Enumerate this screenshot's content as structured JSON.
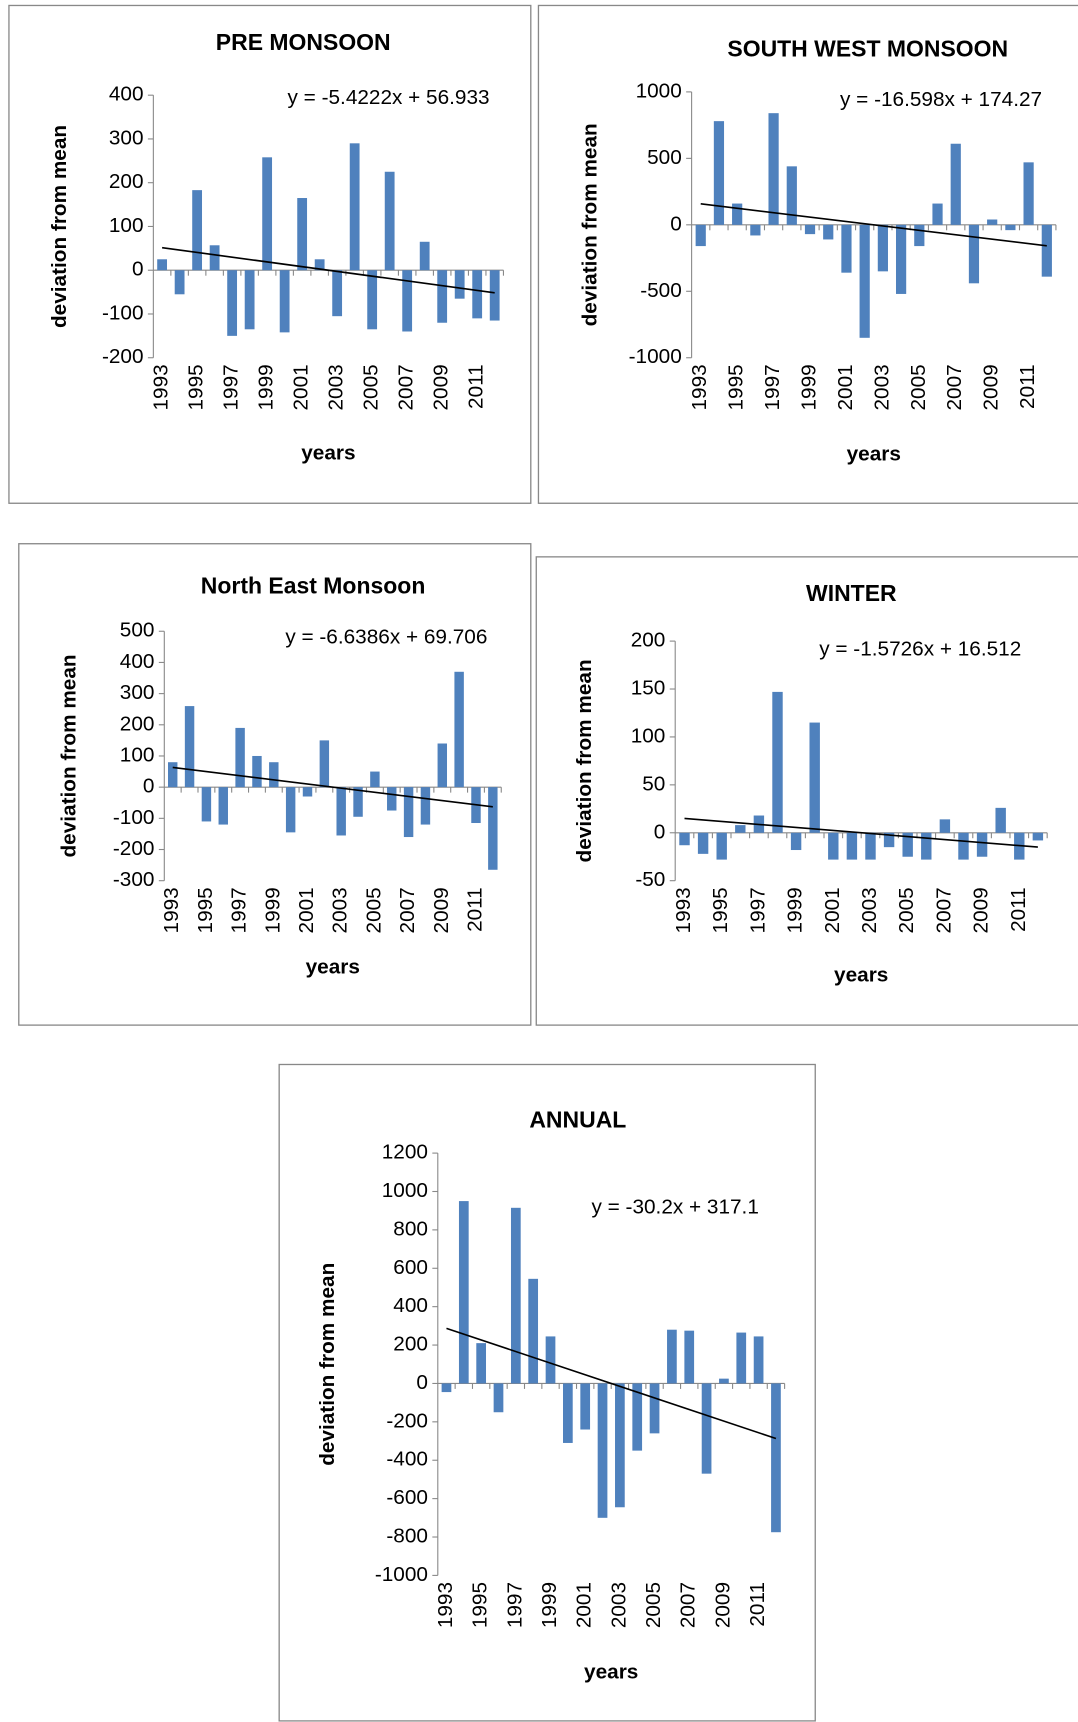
{
  "chart_data": [
    {
      "type": "bar",
      "title": "PRE MONSOON",
      "y_label": "deviation from mean",
      "x_label": "years",
      "categories": [
        "1993",
        null,
        "1995",
        null,
        "1997",
        null,
        "1999",
        null,
        "2001",
        null,
        "2003",
        null,
        "2005",
        null,
        "2007",
        null,
        "2009",
        null,
        "2011",
        null
      ],
      "values": [
        25,
        -55,
        183,
        57,
        -150,
        -135,
        258,
        -142,
        165,
        25,
        -105,
        290,
        -135,
        225,
        -140,
        65,
        -120,
        -65,
        -110,
        -115
      ],
      "color": "#4f81bd",
      "ylim": [
        -200,
        400
      ],
      "yticks": [
        -200,
        -100,
        0,
        100,
        200,
        300,
        400
      ],
      "trendline": {
        "slope": -5.4222,
        "intercept": 56.933,
        "label": "y = -5.4222x + 56.933"
      }
    },
    {
      "type": "bar",
      "title": "SOUTH WEST MONSOON",
      "y_label": "deviation from mean",
      "x_label": "years",
      "categories": [
        "1993",
        null,
        "1995",
        null,
        "1997",
        null,
        "1999",
        null,
        "2001",
        null,
        "2003",
        null,
        "2005",
        null,
        "2007",
        null,
        "2009",
        null,
        "2011",
        null
      ],
      "values": [
        -160,
        780,
        160,
        -80,
        840,
        440,
        -70,
        -110,
        -360,
        -850,
        -350,
        -520,
        -160,
        160,
        610,
        -440,
        40,
        -40,
        470,
        -390
      ],
      "color": "#4f81bd",
      "ylim": [
        -1000,
        1000
      ],
      "yticks": [
        -1000,
        -500,
        0,
        500,
        1000
      ],
      "trendline": {
        "slope": -16.598,
        "intercept": 174.27,
        "label": "y = -16.598x + 174.27"
      }
    },
    {
      "type": "bar",
      "title": "North East Monsoon",
      "y_label": "deviation from mean",
      "x_label": "years",
      "categories": [
        "1993",
        null,
        "1995",
        null,
        "1997",
        null,
        "1999",
        null,
        "2001",
        null,
        "2003",
        null,
        "2005",
        null,
        "2007",
        null,
        "2009",
        null,
        "2011",
        null
      ],
      "values": [
        80,
        260,
        -110,
        -120,
        190,
        100,
        80,
        -145,
        -30,
        150,
        -155,
        -95,
        50,
        -75,
        -160,
        -120,
        140,
        370,
        -115,
        -265
      ],
      "color": "#4f81bd",
      "ylim": [
        -300,
        500
      ],
      "yticks": [
        -300,
        -200,
        -100,
        0,
        100,
        200,
        300,
        400,
        500
      ],
      "trendline": {
        "slope": -6.6386,
        "intercept": 69.706,
        "label": "y = -6.6386x + 69.706"
      }
    },
    {
      "type": "bar",
      "title": "WINTER",
      "y_label": "deviation from mean",
      "x_label": "years",
      "categories": [
        "1993",
        null,
        "1995",
        null,
        "1997",
        null,
        "1999",
        null,
        "2001",
        null,
        "2003",
        null,
        "2005",
        null,
        "2007",
        null,
        "2009",
        null,
        "2011",
        null
      ],
      "values": [
        -13,
        -22,
        -28,
        8,
        18,
        147,
        -18,
        115,
        -28,
        -28,
        -28,
        -15,
        -25,
        -28,
        14,
        -28,
        -25,
        26,
        -28,
        -8
      ],
      "color": "#4f81bd",
      "ylim": [
        -50,
        200
      ],
      "yticks": [
        -50,
        0,
        50,
        100,
        150,
        200
      ],
      "trendline": {
        "slope": -1.5726,
        "intercept": 16.512,
        "label": "y = -1.5726x + 16.512"
      }
    },
    {
      "type": "bar",
      "title": "ANNUAL",
      "y_label": "deviation from mean",
      "x_label": "years",
      "categories": [
        "1993",
        null,
        "1995",
        null,
        "1997",
        null,
        "1999",
        null,
        "2001",
        null,
        "2003",
        null,
        "2005",
        null,
        "2007",
        null,
        "2009",
        null,
        "2011",
        null
      ],
      "values": [
        -45,
        950,
        210,
        -150,
        915,
        545,
        245,
        -310,
        -240,
        -700,
        -645,
        -350,
        -260,
        280,
        275,
        -470,
        25,
        265,
        245,
        -775
      ],
      "color": "#4f81bd",
      "ylim": [
        -1000,
        1200
      ],
      "yticks": [
        -1000,
        -800,
        -600,
        -400,
        -200,
        0,
        200,
        400,
        600,
        800,
        1000,
        1200
      ],
      "trendline": {
        "slope": -30.2,
        "intercept": 317.1,
        "label": "y = -30.2x + 317.1"
      }
    }
  ]
}
